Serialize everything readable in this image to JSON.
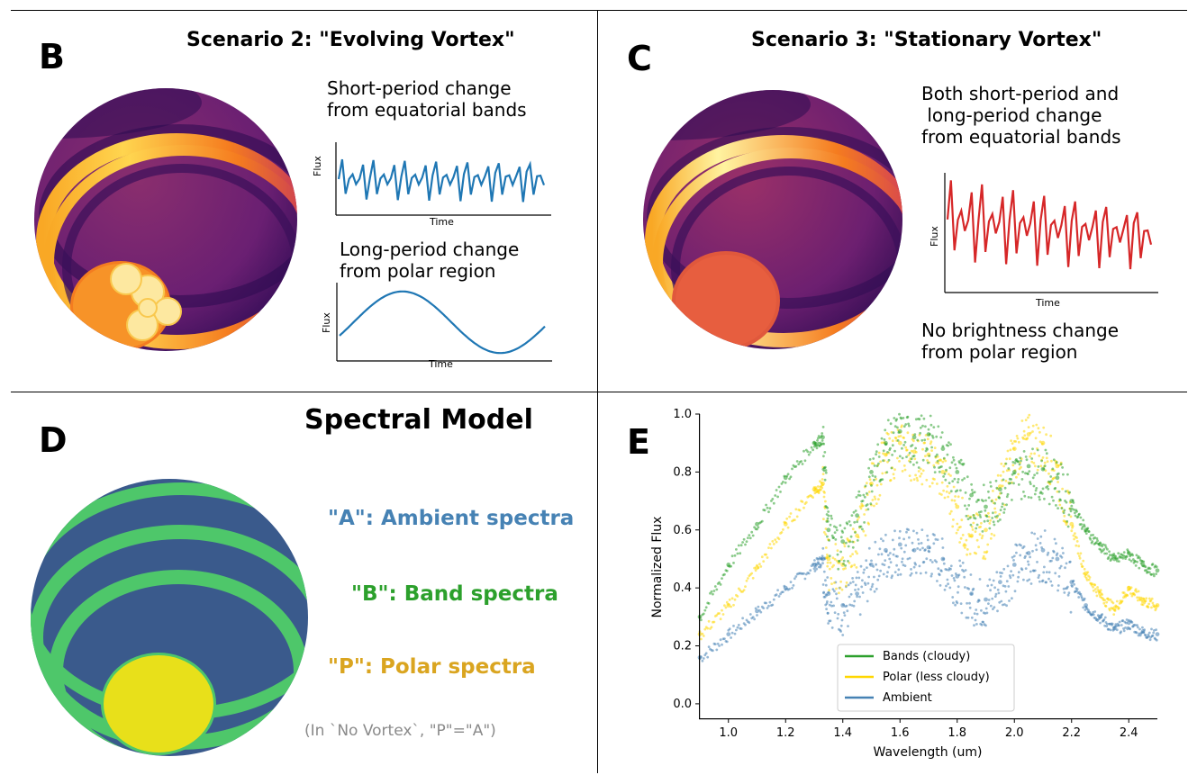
{
  "colors": {
    "ambient": "#4682b4",
    "band": "#2ca02c",
    "polar": "#daa520",
    "note": "#8a8a8a",
    "mini_blue": "#1f77b4",
    "mini_red": "#d62728",
    "model_dark": "#3b528b",
    "model_green": "#4ec76a",
    "model_yellow": "#e8e01a"
  },
  "panelB": {
    "letter": "B",
    "title": "Scenario 2: \"Evolving Vortex\"",
    "short_text": "Short-period change\nfrom equatorial bands",
    "long_text": "Long-period change\nfrom polar region",
    "plot1": {
      "ylabel": "Flux",
      "xlabel": "Time",
      "kind": "fast",
      "color": "#1f77b4"
    },
    "plot2": {
      "ylabel": "Flux",
      "xlabel": "Time",
      "kind": "sine",
      "color": "#1f77b4"
    }
  },
  "panelC": {
    "letter": "C",
    "title": "Scenario 3: \"Stationary Vortex\"",
    "both_text": "Both short-period and\n long-period change\nfrom equatorial bands",
    "no_change_text": "No brightness change\nfrom polar region",
    "plot": {
      "ylabel": "Flux",
      "xlabel": "Time",
      "kind": "fast-decay",
      "color": "#d62728"
    }
  },
  "panelD": {
    "letter": "D",
    "title": "Spectral Model",
    "label_a": "\"A\": Ambient spectra",
    "label_b": "\"B\": Band spectra",
    "label_p": "\"P\": Polar spectra",
    "note": "(In `No Vortex`, \"P\"=\"A\")"
  },
  "panelE": {
    "letter": "E",
    "chart_data": {
      "type": "scatter",
      "title": "",
      "xlabel": "Wavelength (um)",
      "ylabel": "Normalized Flux",
      "xlim": [
        0.9,
        2.5
      ],
      "ylim": [
        -0.05,
        1.0
      ],
      "xticks": [
        "1.0",
        "1.2",
        "1.4",
        "1.6",
        "1.8",
        "2.0",
        "2.2",
        "2.4"
      ],
      "yticks": [
        "0.0",
        "0.2",
        "0.4",
        "0.6",
        "0.8",
        "1.0"
      ],
      "legend_position": "bottom-center",
      "series": [
        {
          "name": "Bands (cloudy)",
          "color": "#2ca02c",
          "x": [
            0.9,
            1.0,
            1.1,
            1.2,
            1.3,
            1.33,
            1.35,
            1.4,
            1.45,
            1.5,
            1.55,
            1.6,
            1.65,
            1.7,
            1.75,
            1.8,
            1.85,
            1.9,
            1.95,
            2.0,
            2.05,
            2.1,
            2.15,
            2.2,
            2.25,
            2.3,
            2.35,
            2.4,
            2.45,
            2.5
          ],
          "y": [
            0.3,
            0.48,
            0.62,
            0.78,
            0.9,
            0.92,
            0.6,
            0.56,
            0.65,
            0.8,
            0.9,
            0.94,
            0.92,
            0.93,
            0.88,
            0.8,
            0.72,
            0.68,
            0.74,
            0.8,
            0.82,
            0.81,
            0.78,
            0.7,
            0.6,
            0.55,
            0.5,
            0.52,
            0.48,
            0.46
          ]
        },
        {
          "name": "Polar (less cloudy)",
          "color": "#ffd700",
          "x": [
            0.9,
            1.0,
            1.1,
            1.2,
            1.3,
            1.33,
            1.35,
            1.4,
            1.45,
            1.5,
            1.55,
            1.6,
            1.65,
            1.7,
            1.75,
            1.8,
            1.85,
            1.9,
            1.95,
            2.0,
            2.05,
            2.1,
            2.15,
            2.2,
            2.25,
            2.3,
            2.35,
            2.4,
            2.45,
            2.5
          ],
          "y": [
            0.24,
            0.34,
            0.47,
            0.62,
            0.74,
            0.76,
            0.5,
            0.48,
            0.58,
            0.76,
            0.86,
            0.9,
            0.87,
            0.86,
            0.8,
            0.68,
            0.58,
            0.6,
            0.75,
            0.88,
            0.93,
            0.9,
            0.82,
            0.62,
            0.45,
            0.38,
            0.33,
            0.4,
            0.36,
            0.34
          ]
        },
        {
          "name": "Ambient",
          "color": "#4682b4",
          "x": [
            0.9,
            1.0,
            1.1,
            1.2,
            1.3,
            1.33,
            1.35,
            1.4,
            1.45,
            1.5,
            1.55,
            1.6,
            1.65,
            1.7,
            1.75,
            1.8,
            1.85,
            1.9,
            1.95,
            2.0,
            2.05,
            2.1,
            2.15,
            2.2,
            2.25,
            2.3,
            2.35,
            2.4,
            2.45,
            2.5
          ],
          "y": [
            0.16,
            0.24,
            0.32,
            0.4,
            0.48,
            0.5,
            0.38,
            0.34,
            0.38,
            0.48,
            0.53,
            0.55,
            0.53,
            0.54,
            0.5,
            0.44,
            0.38,
            0.36,
            0.42,
            0.48,
            0.52,
            0.53,
            0.5,
            0.42,
            0.34,
            0.3,
            0.26,
            0.28,
            0.25,
            0.24
          ]
        }
      ]
    }
  }
}
